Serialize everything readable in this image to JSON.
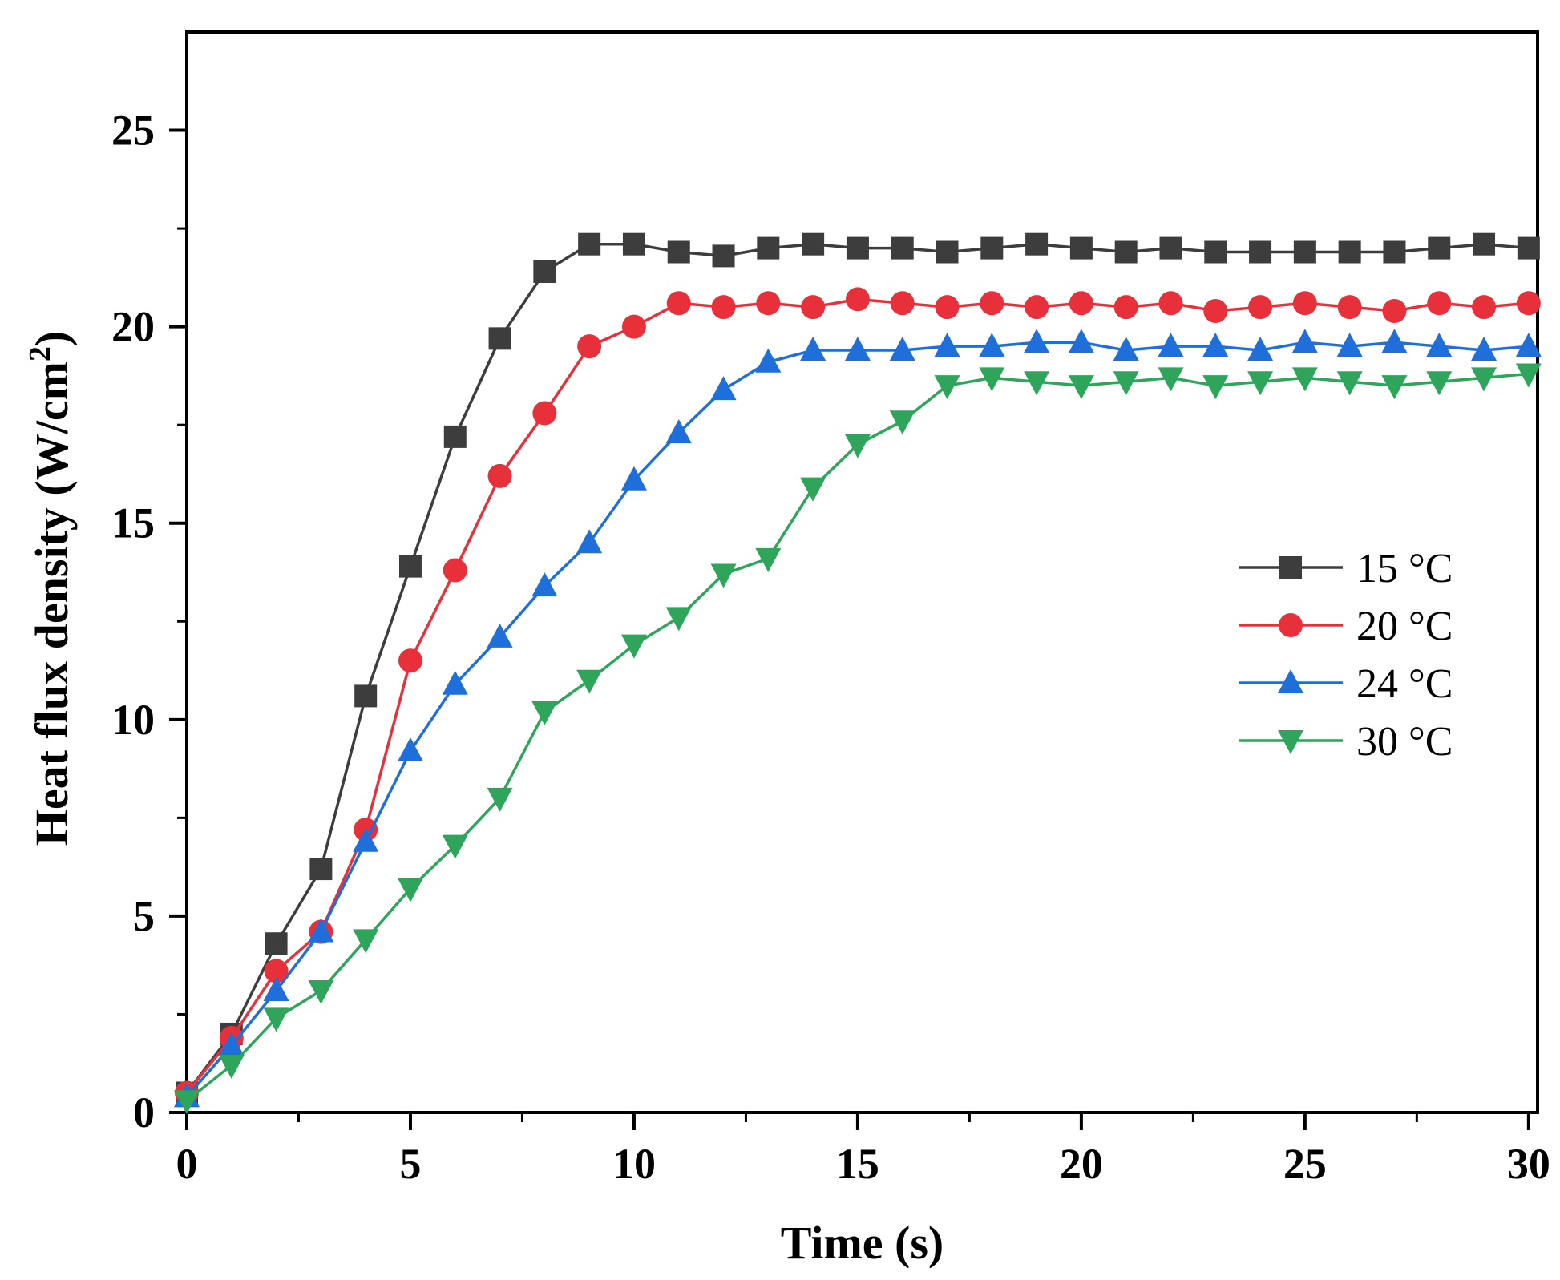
{
  "chart_data": {
    "type": "line",
    "title": "",
    "xlabel": "Time (s)",
    "ylabel": "Heat flux density (W/cm",
    "ylabel_sup": "2",
    "ylabel_suffix": ")",
    "xlim": [
      0,
      30.2
    ],
    "ylim": [
      0,
      27.5
    ],
    "xticks": [
      0,
      5,
      10,
      15,
      20,
      25,
      30
    ],
    "yticks": [
      0,
      5,
      10,
      15,
      20,
      25
    ],
    "x": [
      0,
      1,
      2,
      3,
      4,
      5,
      6,
      7,
      8,
      9,
      10,
      11,
      12,
      13,
      14,
      15,
      16,
      17,
      18,
      19,
      20,
      21,
      22,
      23,
      24,
      25,
      26,
      27,
      28,
      29,
      30
    ],
    "legend_position": "center-right",
    "series": [
      {
        "name": "15 °C",
        "color": "#3d3d3d",
        "marker": "square",
        "values": [
          0.5,
          2.0,
          4.3,
          6.2,
          10.6,
          13.9,
          17.2,
          19.7,
          21.4,
          22.1,
          22.1,
          21.9,
          21.8,
          22.0,
          22.1,
          22.0,
          22.0,
          21.9,
          22.0,
          22.1,
          22.0,
          21.9,
          22.0,
          21.9,
          21.9,
          21.9,
          21.9,
          21.9,
          22.0,
          22.1,
          22.0
        ]
      },
      {
        "name": "20 °C",
        "color": "#e8303a",
        "marker": "circle",
        "values": [
          0.5,
          1.9,
          3.6,
          4.6,
          7.2,
          11.5,
          13.8,
          16.2,
          17.8,
          19.5,
          20.0,
          20.6,
          20.5,
          20.6,
          20.5,
          20.7,
          20.6,
          20.5,
          20.6,
          20.5,
          20.6,
          20.5,
          20.6,
          20.4,
          20.5,
          20.6,
          20.5,
          20.4,
          20.6,
          20.5,
          20.6
        ]
      },
      {
        "name": "24 °C",
        "color": "#1f6fdb",
        "marker": "triangle-up",
        "values": [
          0.4,
          1.7,
          3.1,
          4.6,
          6.9,
          9.2,
          10.9,
          12.1,
          13.4,
          14.5,
          16.1,
          17.3,
          18.4,
          19.1,
          19.4,
          19.4,
          19.4,
          19.5,
          19.5,
          19.6,
          19.6,
          19.4,
          19.5,
          19.5,
          19.4,
          19.6,
          19.5,
          19.6,
          19.5,
          19.4,
          19.5
        ]
      },
      {
        "name": "30 °C",
        "color": "#2ea55b",
        "marker": "triangle-down",
        "values": [
          0.3,
          1.2,
          2.4,
          3.1,
          4.4,
          5.7,
          6.8,
          8.0,
          10.2,
          11.0,
          11.9,
          12.6,
          13.7,
          14.1,
          15.9,
          17.0,
          17.6,
          18.5,
          18.7,
          18.6,
          18.5,
          18.6,
          18.7,
          18.5,
          18.6,
          18.7,
          18.6,
          18.5,
          18.6,
          18.7,
          18.8
        ]
      }
    ]
  }
}
